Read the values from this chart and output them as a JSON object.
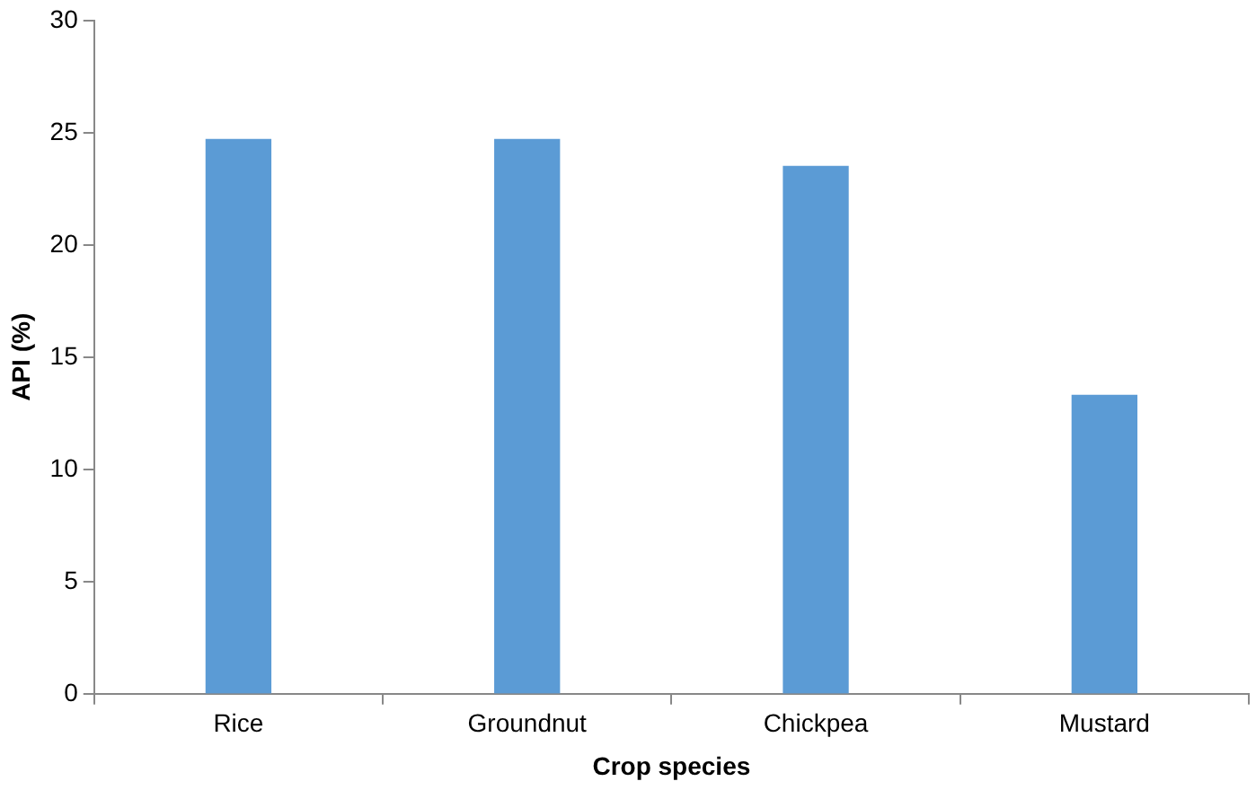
{
  "chart_data": {
    "type": "bar",
    "xlabel": "Crop species",
    "ylabel": "API (%)",
    "categories": [
      "Rice",
      "Groundnut",
      "Chickpea",
      "Mustard"
    ],
    "values": [
      24.7,
      24.7,
      23.5,
      13.3
    ],
    "color": "#5b9bd5",
    "ylim": [
      0,
      30
    ],
    "yticks": [
      0,
      5,
      10,
      15,
      20,
      25,
      30
    ],
    "grid": false,
    "legend": false
  }
}
